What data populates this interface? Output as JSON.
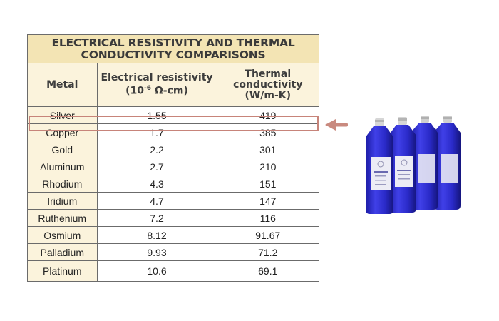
{
  "table": {
    "title_line1": "ELECTRICAL RESISTIVITY AND THERMAL",
    "title_line2": "CONDUCTIVITY COMPARISONS",
    "headers": {
      "metal": "Metal",
      "resistivity_line1": "Electrical resistivity",
      "resistivity_unit_prefix": "(10",
      "resistivity_unit_exp": "-6",
      "resistivity_unit_suffix": " Ω-cm)",
      "conductivity_line1": "Thermal",
      "conductivity_line2": "conductivity",
      "conductivity_line3": "(W/m-K)"
    },
    "rows": [
      {
        "metal": "Silver",
        "resistivity": "1.55",
        "conductivity": "419"
      },
      {
        "metal": "Copper",
        "resistivity": "1.7",
        "conductivity": "385"
      },
      {
        "metal": "Gold",
        "resistivity": "2.2",
        "conductivity": "301"
      },
      {
        "metal": "Aluminum",
        "resistivity": "2.7",
        "conductivity": "210"
      },
      {
        "metal": "Rhodium",
        "resistivity": "4.3",
        "conductivity": "151"
      },
      {
        "metal": "Iridium",
        "resistivity": "4.7",
        "conductivity": "147"
      },
      {
        "metal": "Ruthenium",
        "resistivity": "7.2",
        "conductivity": "116"
      },
      {
        "metal": "Osmium",
        "resistivity": "8.12",
        "conductivity": "91.67"
      },
      {
        "metal": "Palladium",
        "resistivity": "9.93",
        "conductivity": "71.2"
      },
      {
        "metal": "Platinum",
        "resistivity": "10.6",
        "conductivity": "69.1"
      }
    ]
  },
  "colors": {
    "title_bg": "#f3e4b4",
    "header_bg": "#fbf3dc",
    "highlight_border": "#c7847a",
    "bottle_blue": "#2f2fd0"
  },
  "icons": {
    "arrow": "left-arrow-icon",
    "product": "blue-bottles-image"
  }
}
